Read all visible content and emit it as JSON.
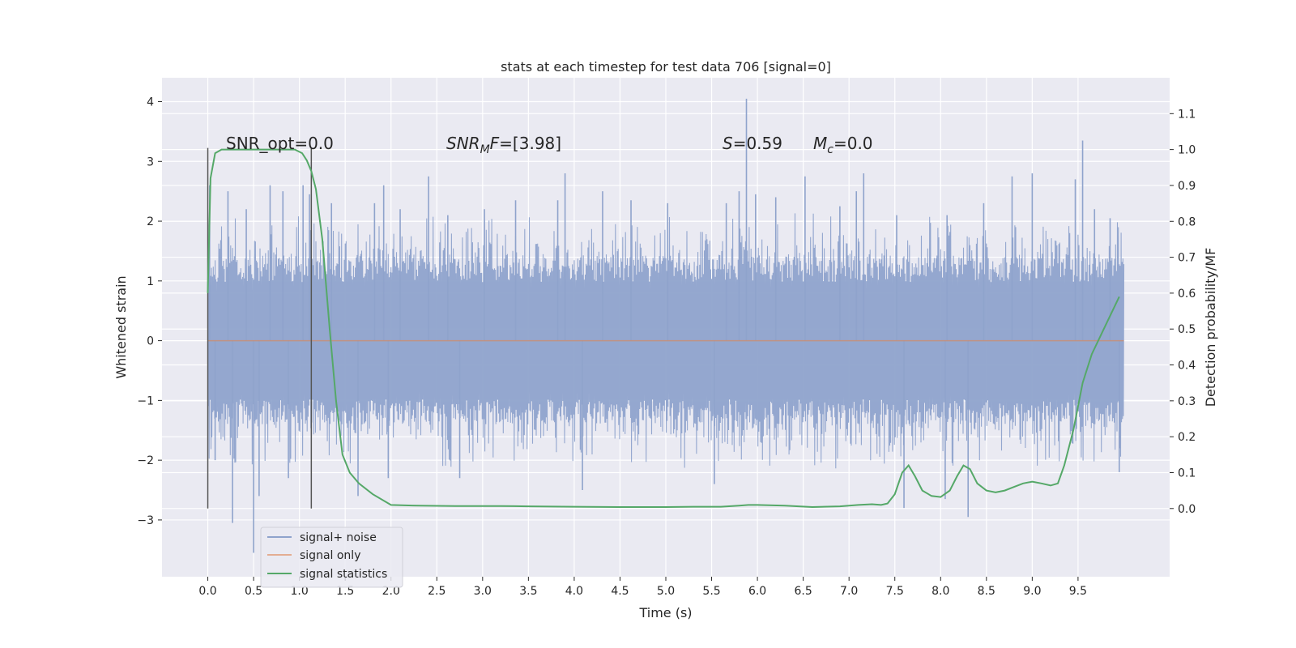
{
  "chart_data": {
    "type": "line",
    "title": "stats at each timestep for test data 706 [signal=0]",
    "xlabel": "Time (s)",
    "ylabel": "Whitened strain",
    "y2label": "Detection probability/MF",
    "xlim": [
      -0.5,
      10.5
    ],
    "ylim": [
      -3.95,
      4.4
    ],
    "y2lim": [
      -0.19,
      1.2
    ],
    "x_ticks": [
      0.0,
      0.5,
      1.0,
      1.5,
      2.0,
      2.5,
      3.0,
      3.5,
      4.0,
      4.5,
      5.0,
      5.5,
      6.0,
      6.5,
      7.0,
      7.5,
      8.0,
      8.5,
      9.0,
      9.5
    ],
    "y_ticks": [
      -3,
      -2,
      -1,
      0,
      1,
      2,
      3,
      4
    ],
    "y2_ticks": [
      0.0,
      0.1,
      0.2,
      0.3,
      0.4,
      0.5,
      0.6,
      0.7,
      0.8,
      0.9,
      1.0,
      1.1
    ],
    "grid": true,
    "legend_placement": "lower-left",
    "colors": {
      "background": "#eaeaf2",
      "noise": "#8fa3cc",
      "signal": "#dd8452",
      "statistics": "#55a868",
      "grid": "#ffffff",
      "markers": "#555555"
    },
    "annotations": {
      "snr_opt": "SNR_opt=0.0",
      "snr_mf_label": "SNR",
      "snr_mf_sub": "M",
      "snr_mf_tail": "F",
      "snr_mf_value": "=[3.98]",
      "s_label": "S",
      "s_value": "=0.59",
      "mc_label": "M",
      "mc_sub": "c",
      "mc_value": "=0.0"
    },
    "markers_x": [
      0.0,
      1.13
    ],
    "series": [
      {
        "name": "signal+ noise",
        "kind": "noise-band",
        "x_range": [
          0.0,
          10.0
        ],
        "typical_band": [
          -1.4,
          1.4
        ],
        "peaks": [
          [
            0.02,
            2.6
          ],
          [
            0.08,
            -2.0
          ],
          [
            0.22,
            2.5
          ],
          [
            0.27,
            -3.05
          ],
          [
            0.42,
            2.2
          ],
          [
            0.5,
            -3.55
          ],
          [
            0.56,
            -2.6
          ],
          [
            0.68,
            2.6
          ],
          [
            0.82,
            2.5
          ],
          [
            0.88,
            -2.3
          ],
          [
            1.04,
            2.6
          ],
          [
            1.11,
            2.45
          ],
          [
            1.35,
            2.3
          ],
          [
            1.64,
            -2.6
          ],
          [
            1.82,
            2.3
          ],
          [
            1.92,
            2.6
          ],
          [
            1.97,
            -2.3
          ],
          [
            2.1,
            2.2
          ],
          [
            2.41,
            2.75
          ],
          [
            2.62,
            2.1
          ],
          [
            2.75,
            -2.3
          ],
          [
            3.02,
            2.2
          ],
          [
            3.36,
            2.35
          ],
          [
            3.82,
            2.35
          ],
          [
            3.9,
            2.8
          ],
          [
            4.09,
            -2.5
          ],
          [
            4.31,
            2.5
          ],
          [
            4.62,
            2.35
          ],
          [
            5.02,
            2.3
          ],
          [
            5.53,
            -2.4
          ],
          [
            5.66,
            2.3
          ],
          [
            5.8,
            2.5
          ],
          [
            5.88,
            4.05
          ],
          [
            5.98,
            2.45
          ],
          [
            6.2,
            2.4
          ],
          [
            6.52,
            2.75
          ],
          [
            6.9,
            2.25
          ],
          [
            7.08,
            2.5
          ],
          [
            7.16,
            2.8
          ],
          [
            7.52,
            2.1
          ],
          [
            7.6,
            -2.8
          ],
          [
            8.05,
            -2.65
          ],
          [
            8.07,
            2.1
          ],
          [
            8.3,
            -2.95
          ],
          [
            8.47,
            2.3
          ],
          [
            8.78,
            2.75
          ],
          [
            9.0,
            2.8
          ],
          [
            9.47,
            2.7
          ],
          [
            9.55,
            3.35
          ],
          [
            9.68,
            2.2
          ],
          [
            9.85,
            2.05
          ],
          [
            9.95,
            -2.2
          ]
        ]
      },
      {
        "name": "signal only",
        "kind": "line",
        "x": [
          0.0,
          10.0
        ],
        "y": [
          0.0,
          0.0
        ]
      },
      {
        "name": "signal statistics",
        "kind": "line",
        "axis": "right",
        "x": [
          0.0,
          0.03,
          0.08,
          0.15,
          0.25,
          0.4,
          0.6,
          0.8,
          0.95,
          1.03,
          1.08,
          1.13,
          1.18,
          1.25,
          1.33,
          1.4,
          1.47,
          1.55,
          1.65,
          1.8,
          2.0,
          2.3,
          2.7,
          3.2,
          3.5,
          4.0,
          4.5,
          5.0,
          5.3,
          5.6,
          5.8,
          5.9,
          6.0,
          6.3,
          6.6,
          6.9,
          7.1,
          7.25,
          7.35,
          7.42,
          7.5,
          7.58,
          7.65,
          7.72,
          7.8,
          7.9,
          8.0,
          8.1,
          8.18,
          8.25,
          8.32,
          8.4,
          8.5,
          8.6,
          8.7,
          8.8,
          8.9,
          9.0,
          9.1,
          9.2,
          9.28,
          9.35,
          9.45,
          9.55,
          9.65,
          9.8,
          9.95
        ],
        "y": [
          0.6,
          0.92,
          0.99,
          1.0,
          1.0,
          1.0,
          1.0,
          1.0,
          1.0,
          0.99,
          0.97,
          0.94,
          0.89,
          0.75,
          0.5,
          0.3,
          0.15,
          0.1,
          0.07,
          0.04,
          0.01,
          0.008,
          0.007,
          0.007,
          0.006,
          0.005,
          0.004,
          0.004,
          0.005,
          0.005,
          0.008,
          0.01,
          0.01,
          0.008,
          0.004,
          0.006,
          0.01,
          0.012,
          0.01,
          0.014,
          0.04,
          0.1,
          0.12,
          0.09,
          0.05,
          0.035,
          0.032,
          0.05,
          0.09,
          0.12,
          0.11,
          0.07,
          0.05,
          0.045,
          0.05,
          0.06,
          0.07,
          0.075,
          0.07,
          0.064,
          0.07,
          0.12,
          0.22,
          0.35,
          0.43,
          0.51,
          0.59
        ]
      }
    ]
  }
}
